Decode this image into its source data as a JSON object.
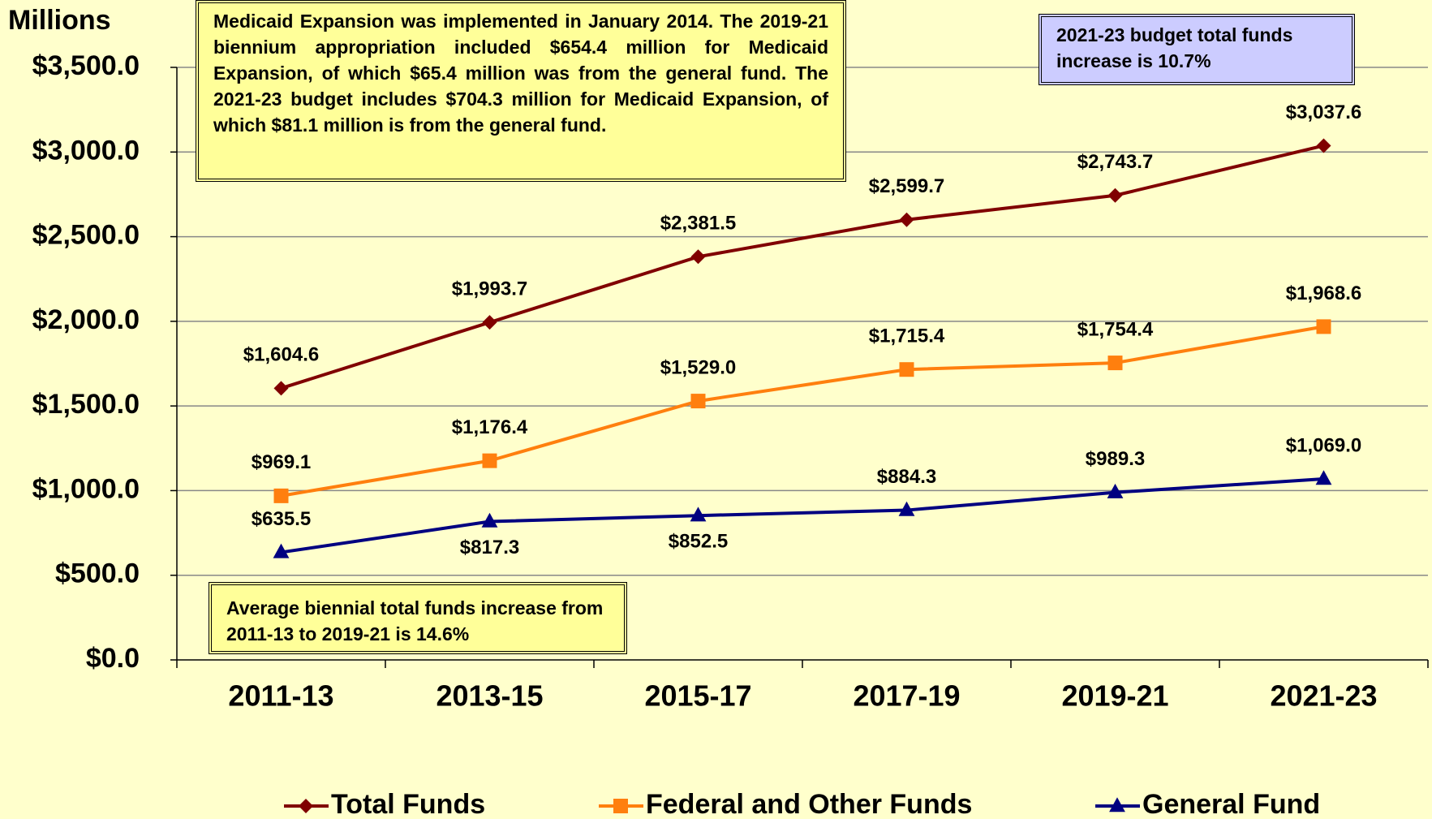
{
  "chart_data": {
    "type": "line",
    "y_label": "Millions",
    "categories": [
      "2011-13",
      "2013-15",
      "2015-17",
      "2017-19",
      "2019-21",
      "2021-23"
    ],
    "series": [
      {
        "name": "Total Funds",
        "color": "#800000",
        "marker": "diamond",
        "values": [
          1604.6,
          1993.7,
          2381.5,
          2599.7,
          2743.7,
          3037.6
        ],
        "value_labels": [
          "$1,604.6",
          "$1,993.7",
          "$2,381.5",
          "$2,599.7",
          "$2,743.7",
          "$3,037.6"
        ]
      },
      {
        "name": "Federal and Other Funds",
        "color": "#ff7f0e",
        "marker": "square",
        "values": [
          969.1,
          1176.4,
          1529.0,
          1715.4,
          1754.4,
          1968.6
        ],
        "value_labels": [
          "$969.1",
          "$1,176.4",
          "$1,529.0",
          "$1,715.4",
          "$1,754.4",
          "$1,968.6"
        ]
      },
      {
        "name": "General Fund",
        "color": "#000080",
        "marker": "triangle",
        "values": [
          635.5,
          817.3,
          852.5,
          884.3,
          989.3,
          1069.0
        ],
        "value_labels": [
          "$635.5",
          "$817.3",
          "$852.5",
          "$884.3",
          "$989.3",
          "$1,069.0"
        ]
      }
    ],
    "ylim": [
      0,
      3500
    ],
    "yticks": [
      {
        "value": 0,
        "label": "$0.0"
      },
      {
        "value": 500,
        "label": "$500.0"
      },
      {
        "value": 1000,
        "label": "$1,000.0"
      },
      {
        "value": 1500,
        "label": "$1,500.0"
      },
      {
        "value": 2000,
        "label": "$2,000.0"
      },
      {
        "value": 2500,
        "label": "$2,500.0"
      },
      {
        "value": 3000,
        "label": "$3,000.0"
      },
      {
        "value": 3500,
        "label": "$3,500.0"
      }
    ],
    "grid": true,
    "legend": "bottom",
    "annotations": [
      "Medicaid Expansion was implemented in January 2014. The 2019-21 biennium appropriation included $654.4 million for Medicaid Expansion, of which $65.4 million was from the general fund. The 2021-23 budget includes $704.3 million for Medicaid Expansion, of which $81.1 million is from the general fund.",
      "2021-23 budget total funds increase is 10.7%",
      "Average biennial total funds increase from 2011-13 to 2019-21 is 14.6%"
    ]
  }
}
